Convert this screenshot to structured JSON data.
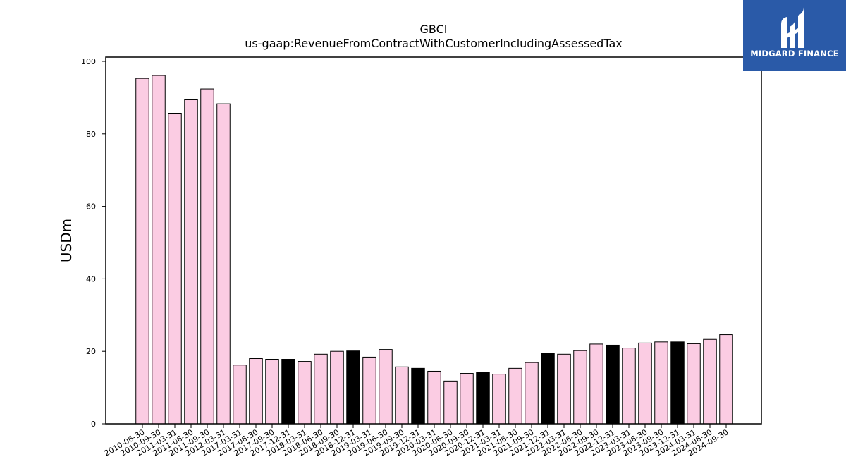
{
  "chart_data": {
    "type": "bar",
    "title": "GBCI",
    "subtitle": "us-gaap:RevenueFromContractWithCustomerIncludingAssessedTax",
    "ylabel": "USDm",
    "xlabel": "",
    "ylim": [
      0,
      100
    ],
    "yticks": [
      0,
      20,
      40,
      60,
      80,
      100
    ],
    "grid": false,
    "categories": [
      "2010-06-30",
      "2010-09-30",
      "2011-03-31",
      "2011-06-30",
      "2011-09-30",
      "2012-03-31",
      "2017-03-31",
      "2017-06-30",
      "2017-09-30",
      "2017-12-31",
      "2018-03-31",
      "2018-06-30",
      "2018-09-30",
      "2018-12-31",
      "2019-03-31",
      "2019-06-30",
      "2019-09-30",
      "2019-12-31",
      "2020-03-31",
      "2020-06-30",
      "2020-09-30",
      "2020-12-31",
      "2021-03-31",
      "2021-06-30",
      "2021-09-30",
      "2021-12-31",
      "2022-03-31",
      "2022-06-30",
      "2022-09-30",
      "2022-12-31",
      "2023-03-31",
      "2023-06-30",
      "2023-09-30",
      "2023-12-31",
      "2024-03-31",
      "2024-06-30",
      "2024-09-30"
    ],
    "values": [
      95.3,
      96.1,
      85.7,
      89.4,
      92.4,
      88.3,
      16.2,
      18.0,
      17.8,
      17.8,
      17.2,
      19.2,
      20.0,
      20.1,
      18.4,
      20.5,
      15.7,
      15.3,
      14.5,
      11.8,
      13.9,
      14.3,
      13.7,
      15.3,
      16.9,
      19.4,
      19.2,
      20.2,
      22.0,
      21.7,
      20.9,
      22.3,
      22.6,
      22.6,
      22.1,
      23.3,
      24.6
    ],
    "highlight_indices": [
      9,
      13,
      17,
      21,
      25,
      29,
      33
    ],
    "colors": {
      "bar_fill": "#fbcce3",
      "bar_highlight": "#000000",
      "bar_edge": "#000000"
    }
  },
  "logo": {
    "text": "MIDGARD FINANCE",
    "background": "#2a5aa8",
    "icon": "midgard-logo-icon"
  }
}
